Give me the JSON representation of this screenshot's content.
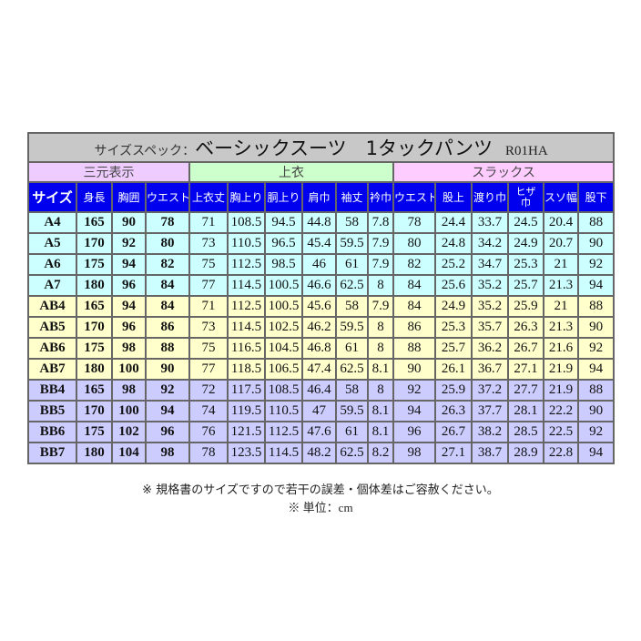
{
  "title": {
    "prefix": "サイズスペック：",
    "main": "ベーシックスーツ　1タックパンツ",
    "code": "R01HA"
  },
  "groups": [
    {
      "label": "三元表示",
      "color": "#eeccff"
    },
    {
      "label": "上衣",
      "color": "#ccffcc"
    },
    {
      "label": "スラックス",
      "color": "#ffccff"
    }
  ],
  "headers": [
    "サイズ",
    "身長",
    "胸囲",
    "ウエスト",
    "上衣丈",
    "胸上り",
    "胴上り",
    "肩巾",
    "袖丈",
    "衿巾",
    "ウエスト",
    "股上",
    "渡り巾",
    "ヒザ巾",
    "スソ幅",
    "股下"
  ],
  "colors": {
    "header": "#0000ee",
    "A": "#ccffff",
    "AB": "#ffffcc",
    "BB": "#ccccff",
    "title": "#c8c8c8"
  },
  "rows": [
    {
      "type": "A",
      "cells": [
        "A4",
        "165",
        "90",
        "78",
        "71",
        "108.5",
        "94.5",
        "44.8",
        "58",
        "7.8",
        "78",
        "24.4",
        "33.7",
        "24.5",
        "20.4",
        "88"
      ]
    },
    {
      "type": "A",
      "cells": [
        "A5",
        "170",
        "92",
        "80",
        "73",
        "110.5",
        "96.5",
        "45.4",
        "59.5",
        "7.9",
        "80",
        "24.8",
        "34.2",
        "24.9",
        "20.7",
        "90"
      ]
    },
    {
      "type": "A",
      "cells": [
        "A6",
        "175",
        "94",
        "82",
        "75",
        "112.5",
        "98.5",
        "46",
        "61",
        "7.9",
        "82",
        "25.2",
        "34.7",
        "25.3",
        "21",
        "92"
      ]
    },
    {
      "type": "A",
      "cells": [
        "A7",
        "180",
        "96",
        "84",
        "77",
        "114.5",
        "100.5",
        "46.6",
        "62.5",
        "8",
        "84",
        "25.6",
        "35.2",
        "25.7",
        "21.3",
        "94"
      ]
    },
    {
      "type": "AB",
      "cells": [
        "AB4",
        "165",
        "94",
        "84",
        "71",
        "112.5",
        "100.5",
        "45.6",
        "58",
        "7.9",
        "84",
        "24.9",
        "35.2",
        "25.9",
        "21",
        "88"
      ]
    },
    {
      "type": "AB",
      "cells": [
        "AB5",
        "170",
        "96",
        "86",
        "73",
        "114.5",
        "102.5",
        "46.2",
        "59.5",
        "8",
        "86",
        "25.3",
        "35.7",
        "26.3",
        "21.3",
        "90"
      ]
    },
    {
      "type": "AB",
      "cells": [
        "AB6",
        "175",
        "98",
        "88",
        "75",
        "116.5",
        "104.5",
        "46.8",
        "61",
        "8",
        "88",
        "25.7",
        "36.2",
        "26.7",
        "21.6",
        "92"
      ]
    },
    {
      "type": "AB",
      "cells": [
        "AB7",
        "180",
        "100",
        "90",
        "77",
        "118.5",
        "106.5",
        "47.4",
        "62.5",
        "8.1",
        "90",
        "26.1",
        "36.7",
        "27.1",
        "21.9",
        "94"
      ]
    },
    {
      "type": "BB",
      "cells": [
        "BB4",
        "165",
        "98",
        "92",
        "72",
        "117.5",
        "108.5",
        "46.4",
        "58",
        "8",
        "92",
        "25.9",
        "37.2",
        "27.7",
        "21.9",
        "88"
      ]
    },
    {
      "type": "BB",
      "cells": [
        "BB5",
        "170",
        "100",
        "94",
        "74",
        "119.5",
        "110.5",
        "47",
        "59.5",
        "8.1",
        "94",
        "26.3",
        "37.7",
        "28.1",
        "22.2",
        "90"
      ]
    },
    {
      "type": "BB",
      "cells": [
        "BB6",
        "175",
        "102",
        "96",
        "76",
        "121.5",
        "112.5",
        "47.6",
        "61",
        "8.1",
        "96",
        "26.7",
        "38.2",
        "28.5",
        "22.5",
        "92"
      ]
    },
    {
      "type": "BB",
      "cells": [
        "BB7",
        "180",
        "104",
        "98",
        "78",
        "123.5",
        "114.5",
        "48.2",
        "62.5",
        "8.2",
        "98",
        "27.1",
        "38.7",
        "28.9",
        "22.8",
        "94"
      ]
    }
  ],
  "notes": [
    "※ 規格書のサイズですので若干の誤差・個体差はご容赦ください。",
    "※ 単位：cm"
  ]
}
